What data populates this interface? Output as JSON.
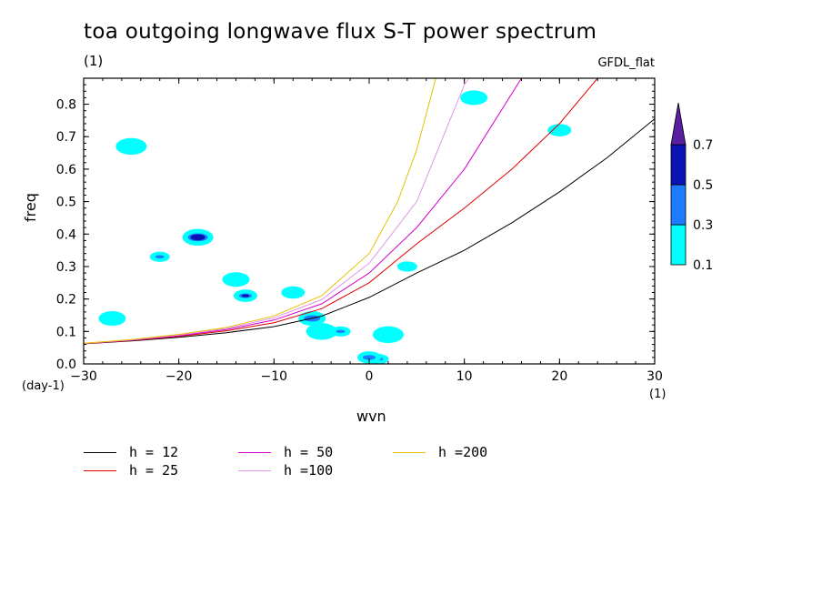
{
  "chart_data": {
    "type": "heatmap",
    "title": "toa outgoing longwave flux S-T power spectrum",
    "subtitle": "(1)",
    "model_label": "GFDL_flat",
    "xlabel": "wvn",
    "ylabel": "freq",
    "x_unit": "(1)",
    "y_unit": "(day-1)",
    "xlim": [
      -30,
      30
    ],
    "ylim": [
      0,
      0.88
    ],
    "x_ticks": [
      "-30",
      "-20",
      "-10",
      "0",
      "10",
      "20",
      "30"
    ],
    "y_ticks": [
      "0.0",
      "0.1",
      "0.2",
      "0.3",
      "0.4",
      "0.5",
      "0.6",
      "0.7",
      "0.8"
    ],
    "contour_levels": [
      "0.1",
      "0.3",
      "0.5",
      "0.7"
    ],
    "level_colors": [
      "#00ffff",
      "#1e7bff",
      "#0a14b4",
      "#5a1ea0"
    ],
    "patches": [
      {
        "x": 1,
        "y": 0.015,
        "level": 3
      },
      {
        "x": 0,
        "y": 0.02,
        "level": 1
      },
      {
        "x": -6,
        "y": 0.14,
        "level": 1
      },
      {
        "x": -5,
        "y": 0.1,
        "level": 0
      },
      {
        "x": -3,
        "y": 0.1,
        "level": 1
      },
      {
        "x": -13,
        "y": 0.21,
        "level": 2
      },
      {
        "x": -14,
        "y": 0.26,
        "level": 0
      },
      {
        "x": -18,
        "y": 0.39,
        "level": 2
      },
      {
        "x": -22,
        "y": 0.33,
        "level": 1
      },
      {
        "x": -8,
        "y": 0.22,
        "level": 0
      },
      {
        "x": -27,
        "y": 0.14,
        "level": 0
      },
      {
        "x": 2,
        "y": 0.09,
        "level": 0
      },
      {
        "x": 4,
        "y": 0.3,
        "level": 0
      },
      {
        "x": 20,
        "y": 0.72,
        "level": 0
      },
      {
        "x": 11,
        "y": 0.82,
        "level": 0
      },
      {
        "x": -25,
        "y": 0.67,
        "level": 0
      }
    ],
    "series": [
      {
        "name": "h = 12",
        "color": "#000000",
        "x": [
          -30,
          -25,
          -20,
          -15,
          -10,
          -5,
          0,
          5,
          10,
          15,
          20,
          25,
          30
        ],
        "y": [
          0.062,
          0.071,
          0.082,
          0.096,
          0.115,
          0.147,
          0.205,
          0.28,
          0.35,
          0.435,
          0.53,
          0.635,
          0.755
        ]
      },
      {
        "name": "h = 25",
        "color": "#e00000",
        "x": [
          -30,
          -25,
          -20,
          -15,
          -10,
          -5,
          0,
          5,
          10,
          15,
          20,
          24
        ],
        "y": [
          0.062,
          0.072,
          0.085,
          0.102,
          0.127,
          0.17,
          0.25,
          0.37,
          0.48,
          0.6,
          0.74,
          0.88
        ]
      },
      {
        "name": "h = 50",
        "color": "#d400c8",
        "x": [
          -30,
          -25,
          -20,
          -15,
          -10,
          -5,
          0,
          5,
          10,
          16
        ],
        "y": [
          0.063,
          0.073,
          0.087,
          0.106,
          0.135,
          0.185,
          0.28,
          0.42,
          0.6,
          0.88
        ]
      },
      {
        "name": "h =100",
        "color": "#e096e6",
        "x": [
          -30,
          -25,
          -20,
          -15,
          -10,
          -5,
          0,
          5,
          10,
          10.5
        ],
        "y": [
          0.063,
          0.074,
          0.089,
          0.109,
          0.142,
          0.198,
          0.31,
          0.5,
          0.86,
          0.88
        ]
      },
      {
        "name": "h =200",
        "color": "#e8c000",
        "x": [
          -30,
          -25,
          -20,
          -15,
          -10,
          -5,
          0,
          3,
          5,
          7
        ],
        "y": [
          0.064,
          0.075,
          0.091,
          0.112,
          0.148,
          0.21,
          0.34,
          0.5,
          0.66,
          0.88
        ]
      }
    ]
  }
}
